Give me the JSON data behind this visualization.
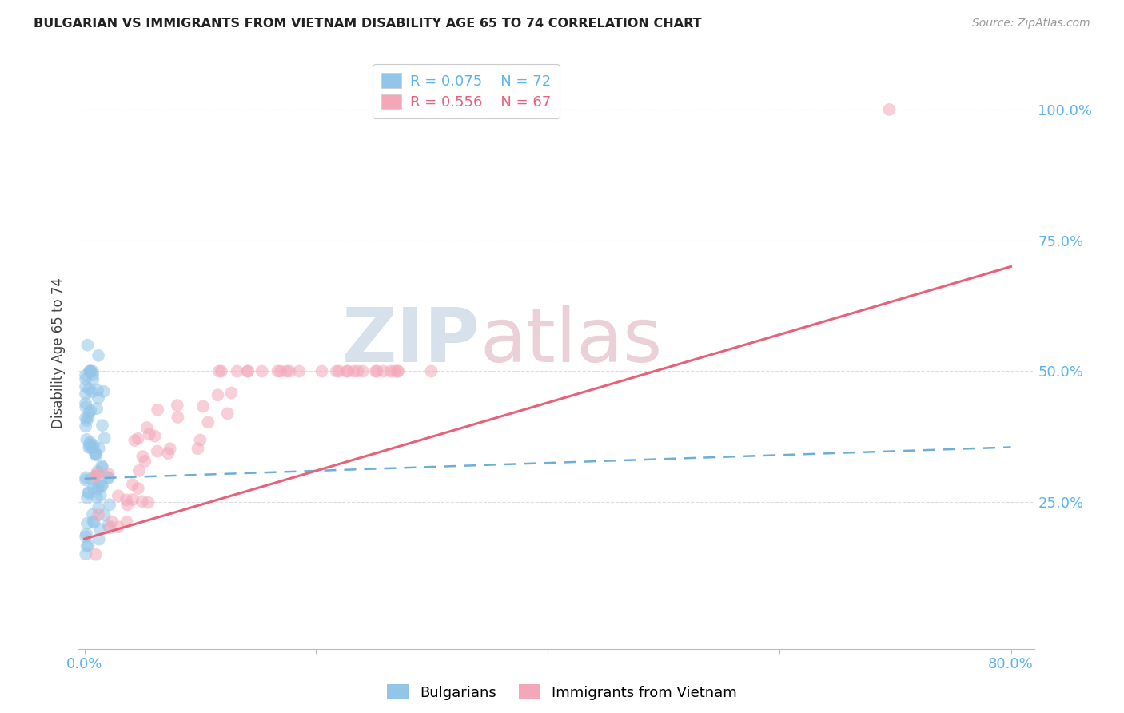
{
  "title": "BULGARIAN VS IMMIGRANTS FROM VIETNAM DISABILITY AGE 65 TO 74 CORRELATION CHART",
  "source": "Source: ZipAtlas.com",
  "ylabel": "Disability Age 65 to 74",
  "xlim": [
    -0.005,
    0.82
  ],
  "ylim": [
    -0.03,
    1.1
  ],
  "x_ticks": [
    0.0,
    0.2,
    0.4,
    0.6,
    0.8
  ],
  "x_tick_labels": [
    "0.0%",
    "",
    "",
    "",
    "80.0%"
  ],
  "y_ticks": [
    0.0,
    0.25,
    0.5,
    0.75,
    1.0
  ],
  "y_tick_labels_right": [
    "",
    "25.0%",
    "50.0%",
    "75.0%",
    "100.0%"
  ],
  "blue_color": "#92c5e8",
  "pink_color": "#f4a7b9",
  "trend_blue_color": "#6baed6",
  "trend_pink_color": "#e8607a",
  "watermark_color": "#d0dce8",
  "watermark_pink_color": "#e8c8d0",
  "grid_color": "#dddddd",
  "tick_label_color": "#5ab4f0",
  "blue_trend_intercept": 0.295,
  "blue_trend_slope": 0.075,
  "pink_trend_intercept": 0.18,
  "pink_trend_slope": 0.65
}
